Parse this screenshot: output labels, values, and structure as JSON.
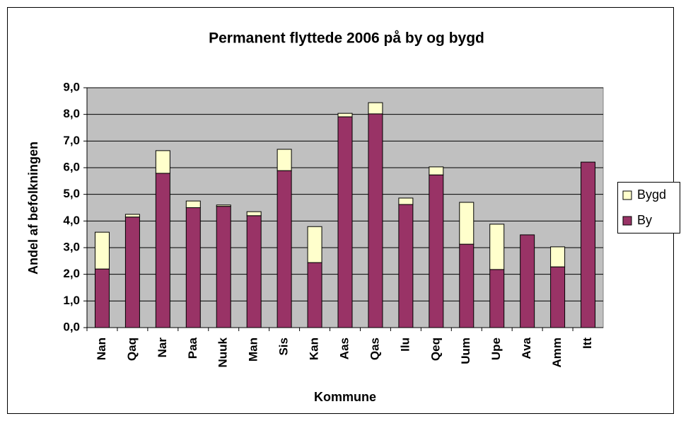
{
  "chart_data": {
    "type": "stacked_bar",
    "title": "Permanent flyttede 2006 på by og bygd",
    "x_label": "Kommune",
    "y_label": "Andel af befolkningen",
    "categories": [
      "Nan",
      "Qaq",
      "Nar",
      "Paa",
      "Nuuk",
      "Man",
      "Sis",
      "Kan",
      "Aas",
      "Qas",
      "Ilu",
      "Qeq",
      "Uum",
      "Upe",
      "Ava",
      "Amm",
      "Itt"
    ],
    "series": [
      {
        "name": "By",
        "color": "#993366",
        "values": [
          2.2,
          4.15,
          5.79,
          4.5,
          4.55,
          4.2,
          5.89,
          2.44,
          7.91,
          8.02,
          4.62,
          5.73,
          3.13,
          2.18,
          3.48,
          2.28,
          6.21
        ]
      },
      {
        "name": "Bygd",
        "color": "#ffffcc",
        "values": [
          1.38,
          0.1,
          0.85,
          0.25,
          0.05,
          0.15,
          0.8,
          1.35,
          0.13,
          0.42,
          0.24,
          0.3,
          1.57,
          1.7,
          0,
          0.75,
          0
        ]
      }
    ],
    "ylim": [
      0,
      9
    ],
    "yticks": [
      {
        "value": 0,
        "label": "0,0"
      },
      {
        "value": 1,
        "label": "1,0"
      },
      {
        "value": 2,
        "label": "2,0"
      },
      {
        "value": 3,
        "label": "3,0"
      },
      {
        "value": 4,
        "label": "4,0"
      },
      {
        "value": 5,
        "label": "5,0"
      },
      {
        "value": 6,
        "label": "6,0"
      },
      {
        "value": 7,
        "label": "7,0"
      },
      {
        "value": 8,
        "label": "8,0"
      },
      {
        "value": 9,
        "label": "9,0"
      }
    ],
    "grid": true,
    "legend": "right"
  }
}
